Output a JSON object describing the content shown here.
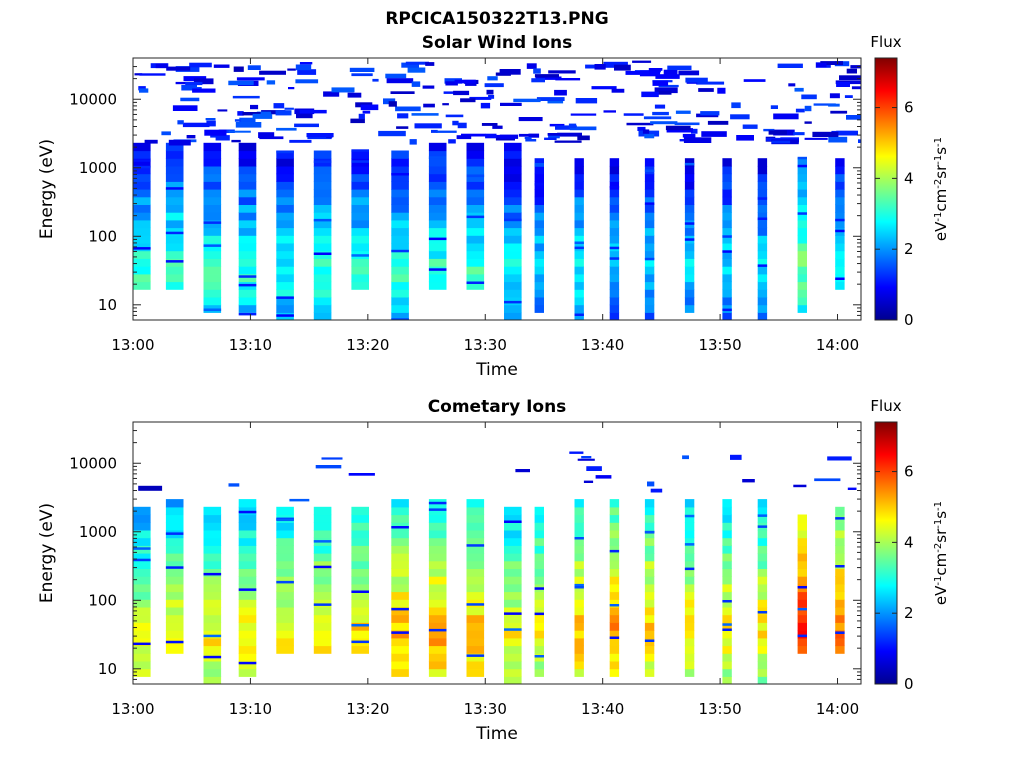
{
  "figure": {
    "title": "RPCICA150322T13.PNG"
  },
  "chart_data": [
    {
      "type": "heatmap",
      "title": "Solar Wind Ions",
      "xlabel": "Time",
      "ylabel": "Energy (eV)",
      "x_ticks": [
        "13:00",
        "13:10",
        "13:20",
        "13:30",
        "13:40",
        "13:50",
        "14:00"
      ],
      "y_ticks": [
        "10",
        "100",
        "1000",
        "10000"
      ],
      "y_scale": "log",
      "ylim": [
        6,
        40000
      ],
      "xlim": [
        "13:00",
        "14:02"
      ],
      "colorbar": {
        "label": "Flux",
        "unit": "eV-1cm-2sr-1s-1",
        "ticks": [
          "0",
          "2",
          "4",
          "6"
        ],
        "range": [
          0,
          7.4
        ]
      },
      "cmap": "jet",
      "blocks": [
        {
          "t": 0.0,
          "w": 1.5,
          "hi": 2500,
          "lo": 15,
          "peak": 3.2,
          "peakE": 30
        },
        {
          "t": 2.8,
          "w": 1.5,
          "hi": 2500,
          "lo": 15,
          "peak": 3.4,
          "peakE": 30
        },
        {
          "t": 6.0,
          "w": 1.5,
          "hi": 2500,
          "lo": 7,
          "peak": 3.2,
          "peakE": 30
        },
        {
          "t": 9.0,
          "w": 1.5,
          "hi": 2500,
          "lo": 7,
          "peak": 3.1,
          "peakE": 30
        },
        {
          "t": 12.2,
          "w": 1.5,
          "hi": 2000,
          "lo": 6,
          "peak": 3.0,
          "peakE": 30
        },
        {
          "t": 15.4,
          "w": 1.5,
          "hi": 2000,
          "lo": 6,
          "peak": 3.2,
          "peakE": 30
        },
        {
          "t": 18.6,
          "w": 1.5,
          "hi": 2000,
          "lo": 15,
          "peak": 3.2,
          "peakE": 30
        },
        {
          "t": 22.0,
          "w": 1.5,
          "hi": 2000,
          "lo": 6,
          "peak": 3.2,
          "peakE": 30
        },
        {
          "t": 25.2,
          "w": 1.5,
          "hi": 2500,
          "lo": 15,
          "peak": 3.2,
          "peakE": 30
        },
        {
          "t": 28.4,
          "w": 1.5,
          "hi": 2500,
          "lo": 15,
          "peak": 3.2,
          "peakE": 30
        },
        {
          "t": 31.6,
          "w": 1.5,
          "hi": 2500,
          "lo": 6,
          "peak": 2.9,
          "peakE": 30
        },
        {
          "t": 34.2,
          "w": 0.8,
          "hi": 1500,
          "lo": 8,
          "peak": 2.6,
          "peakE": 40
        },
        {
          "t": 37.6,
          "w": 0.8,
          "hi": 1500,
          "lo": 6,
          "peak": 2.9,
          "peakE": 40
        },
        {
          "t": 40.6,
          "w": 0.8,
          "hi": 1500,
          "lo": 6,
          "peak": 2.6,
          "peakE": 40
        },
        {
          "t": 43.6,
          "w": 0.8,
          "hi": 1500,
          "lo": 6,
          "peak": 2.6,
          "peakE": 40
        },
        {
          "t": 47.0,
          "w": 0.8,
          "hi": 1500,
          "lo": 8,
          "peak": 2.6,
          "peakE": 40
        },
        {
          "t": 50.2,
          "w": 0.8,
          "hi": 1500,
          "lo": 6,
          "peak": 2.6,
          "peakE": 40
        },
        {
          "t": 53.2,
          "w": 0.8,
          "hi": 1500,
          "lo": 6,
          "peak": 2.6,
          "peakE": 40
        },
        {
          "t": 56.6,
          "w": 0.8,
          "hi": 1500,
          "lo": 8,
          "peak": 3.6,
          "peakE": 40
        },
        {
          "t": 59.8,
          "w": 0.8,
          "hi": 1500,
          "lo": 15,
          "peak": 3.1,
          "peakE": 40
        }
      ]
    },
    {
      "type": "heatmap",
      "title": "Cometary Ions",
      "xlabel": "Time",
      "ylabel": "Energy (eV)",
      "x_ticks": [
        "13:00",
        "13:10",
        "13:20",
        "13:30",
        "13:40",
        "13:50",
        "14:00"
      ],
      "y_ticks": [
        "10",
        "100",
        "1000",
        "10000"
      ],
      "y_scale": "log",
      "ylim": [
        6,
        40000
      ],
      "xlim": [
        "13:00",
        "14:02"
      ],
      "colorbar": {
        "label": "Flux",
        "unit": "eV-1cm-2sr-1s-1",
        "ticks": [
          "0",
          "2",
          "4",
          "6"
        ],
        "range": [
          0,
          7.4
        ]
      },
      "cmap": "jet",
      "blocks": [
        {
          "t": 0.0,
          "w": 1.5,
          "hi": 2600,
          "lo": 7,
          "peak": 4.6,
          "peakE": 25
        },
        {
          "t": 2.8,
          "w": 1.5,
          "hi": 2800,
          "lo": 15,
          "peak": 4.8,
          "peakE": 25
        },
        {
          "t": 6.0,
          "w": 1.5,
          "hi": 2100,
          "lo": 6,
          "peak": 4.7,
          "peakE": 25
        },
        {
          "t": 9.0,
          "w": 1.5,
          "hi": 2700,
          "lo": 8,
          "peak": 4.8,
          "peakE": 25
        },
        {
          "t": 12.2,
          "w": 1.5,
          "hi": 2200,
          "lo": 15,
          "peak": 4.9,
          "peakE": 25
        },
        {
          "t": 15.4,
          "w": 1.5,
          "hi": 2300,
          "lo": 15,
          "peak": 5.0,
          "peakE": 25
        },
        {
          "t": 18.6,
          "w": 1.5,
          "hi": 2100,
          "lo": 15,
          "peak": 5.0,
          "peakE": 30
        },
        {
          "t": 22.0,
          "w": 1.5,
          "hi": 2800,
          "lo": 8,
          "peak": 5.3,
          "peakE": 30
        },
        {
          "t": 25.2,
          "w": 1.5,
          "hi": 2800,
          "lo": 8,
          "peak": 5.4,
          "peakE": 30
        },
        {
          "t": 28.4,
          "w": 1.5,
          "hi": 2700,
          "lo": 8,
          "peak": 5.2,
          "peakE": 30
        },
        {
          "t": 31.6,
          "w": 1.5,
          "hi": 2500,
          "lo": 6,
          "peak": 4.7,
          "peakE": 30
        },
        {
          "t": 34.2,
          "w": 0.8,
          "hi": 2300,
          "lo": 8,
          "peak": 4.8,
          "peakE": 40
        },
        {
          "t": 37.6,
          "w": 0.8,
          "hi": 2700,
          "lo": 8,
          "peak": 5.2,
          "peakE": 40
        },
        {
          "t": 40.6,
          "w": 0.8,
          "hi": 2900,
          "lo": 8,
          "peak": 5.4,
          "peakE": 40
        },
        {
          "t": 43.6,
          "w": 0.8,
          "hi": 2800,
          "lo": 8,
          "peak": 5.1,
          "peakE": 40
        },
        {
          "t": 47.0,
          "w": 0.8,
          "hi": 2800,
          "lo": 8,
          "peak": 4.9,
          "peakE": 40
        },
        {
          "t": 50.2,
          "w": 0.8,
          "hi": 2800,
          "lo": 6,
          "peak": 4.8,
          "peakE": 40
        },
        {
          "t": 53.2,
          "w": 0.8,
          "hi": 2800,
          "lo": 6,
          "peak": 4.8,
          "peakE": 40
        },
        {
          "t": 56.6,
          "w": 0.8,
          "hi": 2000,
          "lo": 15,
          "peak": 6.2,
          "peakE": 40
        },
        {
          "t": 59.8,
          "w": 0.8,
          "hi": 2200,
          "lo": 15,
          "peak": 5.6,
          "peakE": 40
        }
      ]
    }
  ]
}
